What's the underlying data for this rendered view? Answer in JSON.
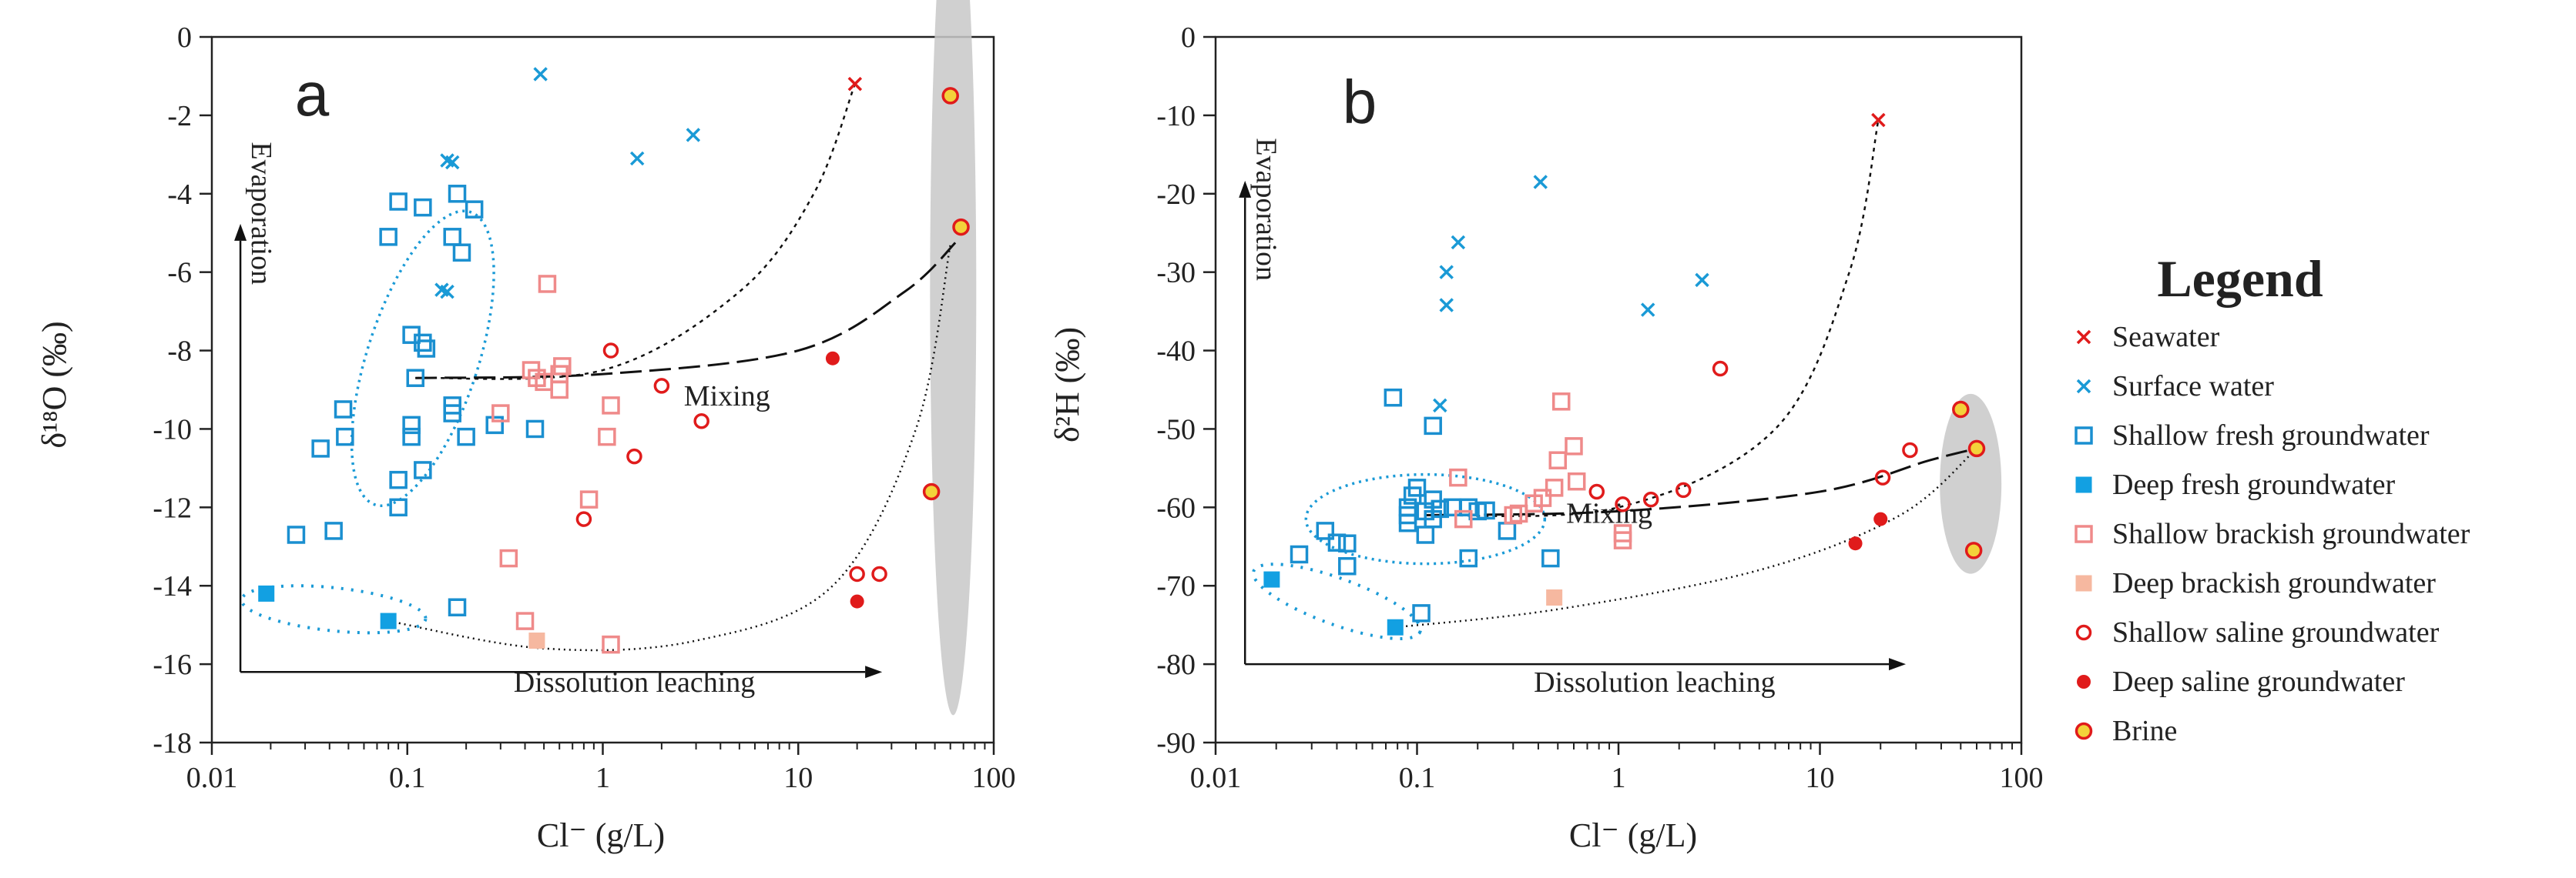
{
  "legend": {
    "title": "Legend",
    "items": [
      {
        "key": "seawater",
        "label": "Seawater",
        "marker": "x",
        "color": "#e01b1b"
      },
      {
        "key": "surface",
        "label": "Surface water",
        "marker": "x",
        "color": "#1a9ad6"
      },
      {
        "key": "shallow_fresh",
        "label": "Shallow  fresh groundwater",
        "marker": "open-square",
        "color": "#1a8fd0"
      },
      {
        "key": "deep_fresh",
        "label": "Deep  fresh  groundwater",
        "marker": "filled-square",
        "color": "#12a0e2"
      },
      {
        "key": "shallow_brackish",
        "label": "Shallow brackish groundwater",
        "marker": "open-square",
        "color": "#ef8a8a"
      },
      {
        "key": "deep_brackish",
        "label": "Deep brackish groundwater",
        "marker": "filled-square",
        "color": "#f6b8a0"
      },
      {
        "key": "shallow_saline",
        "label": "Shallow saline groundwater",
        "marker": "open-circle",
        "color": "#e01b1b"
      },
      {
        "key": "deep_saline",
        "label": "Deep saline groundwater",
        "marker": "filled-circle",
        "color": "#e01b1b"
      },
      {
        "key": "brine",
        "label": "Brine",
        "marker": "brine",
        "color": "#e01b1b"
      }
    ]
  },
  "chart_data": [
    {
      "type": "scatter",
      "panel": "a",
      "panel_label": "a",
      "xlabel": "Cl⁻ (g/L)",
      "ylabel": "δ¹⁸O (‰)",
      "xscale": "log",
      "xlim": [
        0.01,
        100
      ],
      "ylim": [
        -18,
        0
      ],
      "xticks": [
        0.01,
        0.1,
        1,
        10,
        100
      ],
      "xtick_labels": [
        "0.01",
        "0.1",
        "1",
        "10",
        "100"
      ],
      "yticks": [
        0,
        -2,
        -4,
        -6,
        -8,
        -10,
        -12,
        -14,
        -16,
        -18
      ],
      "ytick_labels": [
        "0",
        "-2",
        "-4",
        "-6",
        "-8",
        "-10",
        "-12",
        "-14",
        "-16",
        "-18"
      ],
      "annotations": {
        "evaporation": "Evaporation",
        "dissolution": "Dissolution leaching",
        "mixing": "Mixing"
      },
      "arrows": {
        "origin": [
          0.014,
          -16.2
        ],
        "x_end": 22,
        "y_end": -5.2
      },
      "annotation_pos": {
        "evaporation": [
          0.016,
          -4.5
        ],
        "dissolution": [
          0.35,
          -16.7
        ],
        "mixing": [
          2.6,
          -9.4
        ]
      },
      "series": [
        {
          "key": "seawater",
          "points": [
            [
              19.5,
              -1.2
            ]
          ]
        },
        {
          "key": "surface",
          "points": [
            [
              0.48,
              -0.95
            ],
            [
              2.9,
              -2.5
            ],
            [
              1.5,
              -3.1
            ],
            [
              0.16,
              -3.15
            ],
            [
              0.17,
              -3.2
            ],
            [
              0.15,
              -6.45
            ],
            [
              0.16,
              -6.5
            ]
          ]
        },
        {
          "key": "shallow_fresh",
          "points": [
            [
              0.09,
              -4.2
            ],
            [
              0.12,
              -4.35
            ],
            [
              0.18,
              -4.0
            ],
            [
              0.22,
              -4.4
            ],
            [
              0.17,
              -5.1
            ],
            [
              0.08,
              -5.1
            ],
            [
              0.19,
              -5.5
            ],
            [
              0.105,
              -7.6
            ],
            [
              0.12,
              -7.8
            ],
            [
              0.125,
              -7.95
            ],
            [
              0.11,
              -8.7
            ],
            [
              0.17,
              -9.4
            ],
            [
              0.17,
              -9.6
            ],
            [
              0.105,
              -9.9
            ],
            [
              0.105,
              -10.2
            ],
            [
              0.2,
              -10.2
            ],
            [
              0.28,
              -9.9
            ],
            [
              0.45,
              -10.0
            ],
            [
              0.047,
              -9.5
            ],
            [
              0.048,
              -10.2
            ],
            [
              0.036,
              -10.5
            ],
            [
              0.12,
              -11.05
            ],
            [
              0.09,
              -11.3
            ],
            [
              0.09,
              -12.0
            ],
            [
              0.027,
              -12.7
            ],
            [
              0.042,
              -12.6
            ],
            [
              0.18,
              -14.55
            ]
          ]
        },
        {
          "key": "deep_fresh",
          "points": [
            [
              0.019,
              -14.2
            ],
            [
              0.08,
              -14.9
            ]
          ]
        },
        {
          "key": "shallow_brackish",
          "points": [
            [
              0.52,
              -6.3
            ],
            [
              0.43,
              -8.5
            ],
            [
              0.46,
              -8.7
            ],
            [
              0.5,
              -8.8
            ],
            [
              0.6,
              -8.6
            ],
            [
              0.62,
              -8.4
            ],
            [
              0.6,
              -9.0
            ],
            [
              0.3,
              -9.6
            ],
            [
              1.1,
              -9.4
            ],
            [
              1.05,
              -10.2
            ],
            [
              0.85,
              -11.8
            ],
            [
              0.33,
              -13.3
            ],
            [
              0.4,
              -14.9
            ],
            [
              1.1,
              -15.5
            ]
          ]
        },
        {
          "key": "deep_brackish",
          "points": [
            [
              0.46,
              -15.4
            ]
          ]
        },
        {
          "key": "shallow_saline",
          "points": [
            [
              1.1,
              -8.0
            ],
            [
              2.0,
              -8.9
            ],
            [
              3.2,
              -9.8
            ],
            [
              1.45,
              -10.7
            ],
            [
              0.8,
              -12.3
            ],
            [
              20.0,
              -13.7
            ],
            [
              26.0,
              -13.7
            ]
          ]
        },
        {
          "key": "deep_saline",
          "points": [
            [
              15.0,
              -8.2
            ],
            [
              20.0,
              -14.4
            ]
          ]
        },
        {
          "key": "brine",
          "points": [
            [
              60.0,
              -1.5
            ],
            [
              68.0,
              -4.85
            ],
            [
              48.0,
              -11.6
            ]
          ]
        }
      ]
    },
    {
      "type": "scatter",
      "panel": "b",
      "panel_label": "b",
      "xlabel": "Cl⁻ (g/L)",
      "ylabel": "δ²H (‰)",
      "xscale": "log",
      "xlim": [
        0.01,
        100
      ],
      "ylim": [
        -90,
        0
      ],
      "xticks": [
        0.01,
        0.1,
        1,
        10,
        100
      ],
      "xtick_labels": [
        "0.01",
        "0.1",
        "1",
        "10",
        "100"
      ],
      "yticks": [
        0,
        -10,
        -20,
        -30,
        -40,
        -50,
        -60,
        -70,
        -80,
        -90
      ],
      "ytick_labels": [
        "0",
        "-10",
        "-20",
        "-30",
        "-40",
        "-50",
        "-60",
        "-70",
        "-80",
        "-90"
      ],
      "annotations": {
        "evaporation": "Evaporation",
        "dissolution": "Dissolution leaching",
        "mixing": "Mixing"
      },
      "arrows": {
        "origin": [
          0.014,
          -80.0
        ],
        "x_end": 22,
        "y_end": -20.5
      },
      "annotation_pos": {
        "evaporation": [
          0.016,
          -22.0
        ],
        "dissolution": [
          0.38,
          -83.5
        ],
        "mixing": [
          0.55,
          -62.0
        ]
      },
      "series": [
        {
          "key": "seawater",
          "points": [
            [
              19.5,
              -10.6
            ]
          ]
        },
        {
          "key": "surface",
          "points": [
            [
              0.41,
              -18.5
            ],
            [
              0.16,
              -26.2
            ],
            [
              0.14,
              -30.0
            ],
            [
              0.14,
              -34.2
            ],
            [
              2.6,
              -31.0
            ],
            [
              1.4,
              -34.8
            ],
            [
              0.13,
              -47.0
            ]
          ]
        },
        {
          "key": "shallow_fresh",
          "points": [
            [
              0.076,
              -46.0
            ],
            [
              0.12,
              -49.6
            ],
            [
              0.1,
              -57.5
            ],
            [
              0.095,
              -58.5
            ],
            [
              0.12,
              -59.0
            ],
            [
              0.09,
              -60.0
            ],
            [
              0.09,
              -61.0
            ],
            [
              0.11,
              -60.5
            ],
            [
              0.13,
              -60.2
            ],
            [
              0.15,
              -60.0
            ],
            [
              0.18,
              -60.0
            ],
            [
              0.2,
              -60.5
            ],
            [
              0.22,
              -60.4
            ],
            [
              0.12,
              -61.5
            ],
            [
              0.09,
              -62.0
            ],
            [
              0.11,
              -63.5
            ],
            [
              0.035,
              -63.0
            ],
            [
              0.04,
              -64.5
            ],
            [
              0.045,
              -64.6
            ],
            [
              0.28,
              -63.0
            ],
            [
              0.026,
              -66.0
            ],
            [
              0.045,
              -67.5
            ],
            [
              0.18,
              -66.5
            ],
            [
              0.46,
              -66.5
            ],
            [
              0.105,
              -73.5
            ]
          ]
        },
        {
          "key": "deep_fresh",
          "points": [
            [
              0.019,
              -69.2
            ],
            [
              0.078,
              -75.3
            ]
          ]
        },
        {
          "key": "shallow_brackish",
          "points": [
            [
              0.52,
              -46.5
            ],
            [
              0.6,
              -52.2
            ],
            [
              0.5,
              -54.0
            ],
            [
              0.62,
              -56.7
            ],
            [
              0.48,
              -57.5
            ],
            [
              0.42,
              -58.8
            ],
            [
              0.16,
              -56.2
            ],
            [
              0.38,
              -59.5
            ],
            [
              0.32,
              -60.8
            ],
            [
              0.3,
              -61.0
            ],
            [
              0.17,
              -61.5
            ],
            [
              1.05,
              -63.3
            ],
            [
              1.05,
              -64.2
            ]
          ]
        },
        {
          "key": "deep_brackish",
          "points": [
            [
              0.48,
              -71.5
            ]
          ]
        },
        {
          "key": "shallow_saline",
          "points": [
            [
              3.2,
              -42.3
            ],
            [
              0.78,
              -58.0
            ],
            [
              1.05,
              -59.6
            ],
            [
              1.45,
              -59.0
            ],
            [
              2.1,
              -57.8
            ],
            [
              28.0,
              -52.7
            ],
            [
              20.5,
              -56.2
            ]
          ]
        },
        {
          "key": "deep_saline",
          "points": [
            [
              15.0,
              -64.6
            ],
            [
              20.0,
              -61.5
            ]
          ]
        },
        {
          "key": "brine",
          "points": [
            [
              50.0,
              -47.5
            ],
            [
              60.0,
              -52.5
            ],
            [
              58.0,
              -65.5
            ]
          ]
        }
      ]
    }
  ]
}
